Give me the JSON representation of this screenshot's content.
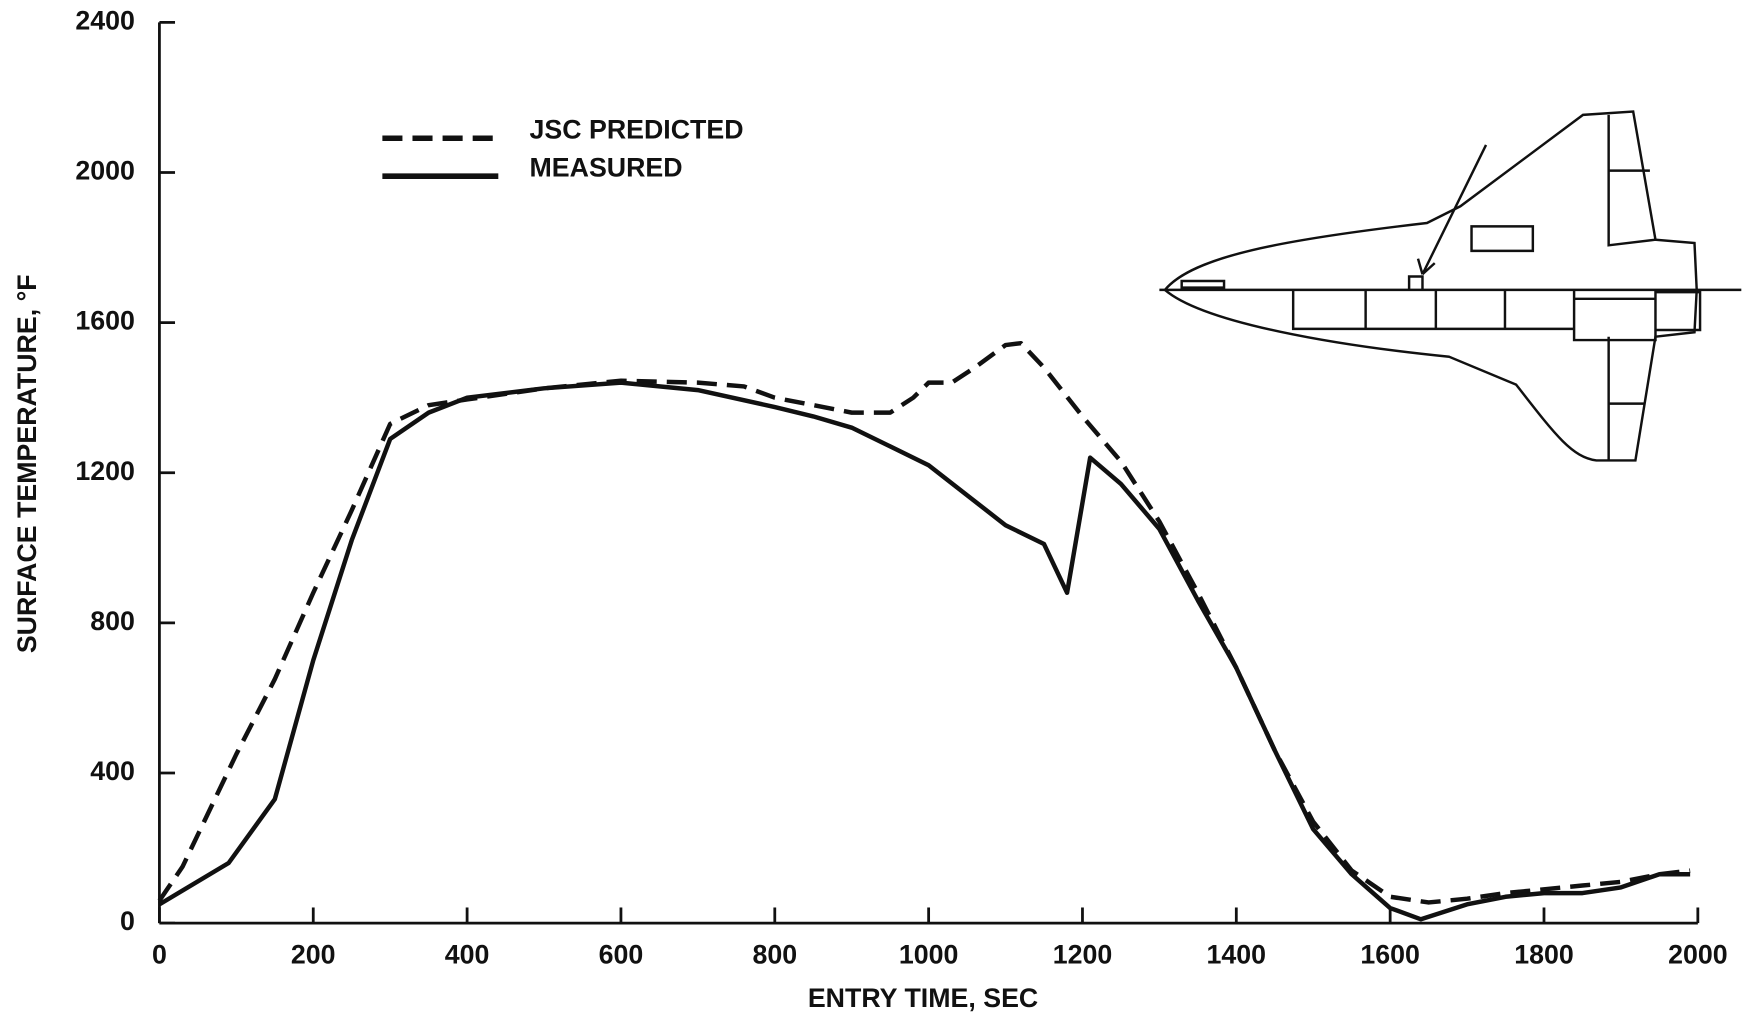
{
  "chart_data": {
    "type": "line",
    "xlabel": "ENTRY TIME, SEC",
    "ylabel": "SURFACE TEMPERATURE, °F",
    "xlim": [
      0,
      2000
    ],
    "xticks": [
      0,
      200,
      400,
      600,
      800,
      1000,
      1200,
      1400,
      1600,
      1800,
      2000
    ],
    "ylim": [
      0,
      2400
    ],
    "yticks": [
      0,
      400,
      800,
      1200,
      1600,
      2000,
      2400
    ],
    "grid": false,
    "series": [
      {
        "name": "JSC PREDICTED",
        "color": "#111111",
        "dash": "dashed",
        "x": [
          0,
          30,
          100,
          150,
          200,
          250,
          300,
          350,
          400,
          500,
          600,
          700,
          760,
          800,
          850,
          900,
          950,
          980,
          1000,
          1030,
          1060,
          1100,
          1120,
          1150,
          1200,
          1250,
          1300,
          1350,
          1400,
          1450,
          1500,
          1550,
          1600,
          1650,
          1700,
          1750,
          1800,
          1850,
          1900,
          1950,
          1990
        ],
        "values": [
          60,
          150,
          450,
          650,
          880,
          1100,
          1330,
          1380,
          1395,
          1425,
          1445,
          1440,
          1430,
          1400,
          1380,
          1360,
          1360,
          1400,
          1440,
          1440,
          1480,
          1540,
          1545,
          1480,
          1350,
          1230,
          1070,
          880,
          680,
          460,
          270,
          140,
          70,
          55,
          65,
          80,
          90,
          100,
          110,
          130,
          140
        ]
      },
      {
        "name": "MEASURED",
        "color": "#111111",
        "dash": "solid",
        "x": [
          0,
          90,
          150,
          200,
          250,
          300,
          350,
          400,
          500,
          600,
          700,
          800,
          850,
          900,
          950,
          1000,
          1050,
          1100,
          1150,
          1180,
          1210,
          1250,
          1300,
          1350,
          1400,
          1450,
          1500,
          1550,
          1600,
          1640,
          1700,
          1750,
          1800,
          1850,
          1900,
          1950,
          1990
        ],
        "values": [
          50,
          160,
          330,
          700,
          1020,
          1290,
          1360,
          1400,
          1425,
          1440,
          1420,
          1375,
          1350,
          1320,
          1270,
          1220,
          1140,
          1060,
          1010,
          880,
          1240,
          1170,
          1050,
          860,
          680,
          460,
          250,
          130,
          40,
          10,
          50,
          70,
          80,
          80,
          95,
          130,
          130
        ]
      }
    ]
  }
}
